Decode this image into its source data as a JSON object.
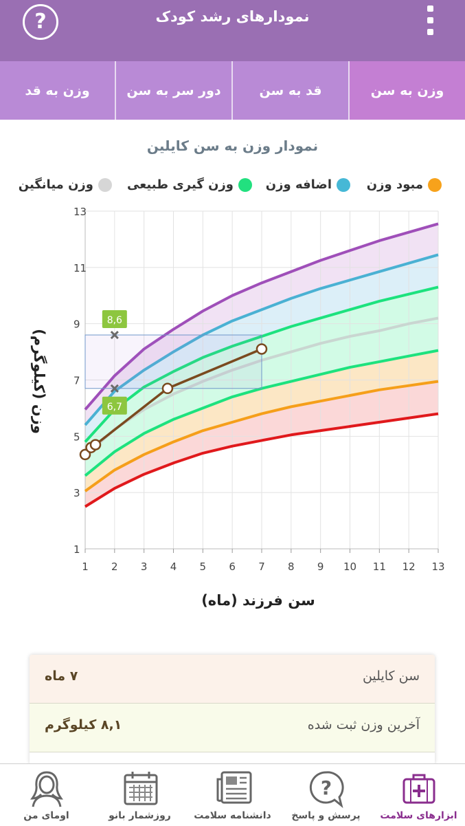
{
  "header": {
    "title": "نمودارهای رشد کودک",
    "help_icon": "help-icon",
    "menu_icon": "more-vert-icon",
    "help_glyph": "?"
  },
  "tabs": [
    {
      "label": "وزن به سن",
      "active": true
    },
    {
      "label": "قد به سن",
      "active": false
    },
    {
      "label": "دور سر به سن",
      "active": false
    },
    {
      "label": "وزن به قد",
      "active": false
    }
  ],
  "chart_title": "نمودار وزن به سن کایلین",
  "legend": [
    {
      "label": "مبود وزن",
      "color": "#f7a21b"
    },
    {
      "label": "اضافه وزن",
      "color": "#46b8d6"
    },
    {
      "label": "وزن گیری طبیعی",
      "color": "#22e07f"
    },
    {
      "label": "وزن میانگین",
      "color": "#d6d6d6"
    }
  ],
  "chart_data": {
    "type": "line",
    "x": [
      1,
      2,
      3,
      4,
      5,
      6,
      7,
      8,
      9,
      10,
      11,
      12,
      13
    ],
    "xlim": [
      1,
      13
    ],
    "ylim": [
      1,
      13
    ],
    "yticks": [
      1,
      3,
      5,
      7,
      9,
      11,
      13
    ],
    "xlabel": "سن فرزند (ماه)",
    "ylabel": "وزن (کیلوگرم)",
    "bands": [
      {
        "color": "#fbd8d8",
        "from": 0,
        "to": 1
      },
      {
        "color": "#fce7c5",
        "from": 1,
        "to": 2
      },
      {
        "color": "#d2fbe6",
        "from": 2,
        "to": 4
      },
      {
        "color": "#dceff8",
        "from": 4,
        "to": 5
      },
      {
        "color": "#f1e2f4",
        "from": 5,
        "to": 6
      }
    ],
    "series": [
      {
        "color": "#e0191c",
        "values": [
          2.5,
          3.15,
          3.65,
          4.05,
          4.4,
          4.65,
          4.85,
          5.05,
          5.2,
          5.35,
          5.5,
          5.65,
          5.8
        ]
      },
      {
        "color": "#f59f1a",
        "values": [
          3.05,
          3.8,
          4.35,
          4.8,
          5.2,
          5.5,
          5.8,
          6.05,
          6.25,
          6.45,
          6.65,
          6.8,
          6.95
        ]
      },
      {
        "color": "#1de27e",
        "values": [
          3.6,
          4.45,
          5.1,
          5.6,
          6.0,
          6.4,
          6.7,
          6.95,
          7.2,
          7.45,
          7.65,
          7.85,
          8.05
        ]
      },
      {
        "color": "#c9d6d1",
        "values": [
          4.3,
          5.25,
          5.95,
          6.5,
          6.95,
          7.35,
          7.7,
          8.0,
          8.3,
          8.55,
          8.75,
          9.0,
          9.2
        ]
      },
      {
        "color": "#1de27e",
        "values": [
          4.8,
          5.95,
          6.75,
          7.3,
          7.8,
          8.2,
          8.55,
          8.9,
          9.2,
          9.5,
          9.8,
          10.05,
          10.3
        ]
      },
      {
        "color": "#4ab1d3",
        "values": [
          5.4,
          6.6,
          7.35,
          8.0,
          8.6,
          9.1,
          9.5,
          9.9,
          10.25,
          10.55,
          10.85,
          11.15,
          11.45
        ]
      },
      {
        "color": "#9f4fb9",
        "values": [
          5.95,
          7.15,
          8.1,
          8.8,
          9.45,
          10.0,
          10.45,
          10.85,
          11.25,
          11.6,
          11.95,
          12.25,
          12.55
        ]
      }
    ],
    "child": {
      "color": "#7a4a1f",
      "points": [
        [
          1.0,
          4.35
        ],
        [
          1.2,
          4.6
        ],
        [
          1.35,
          4.7
        ],
        [
          3.8,
          6.7
        ],
        [
          7.0,
          8.1
        ]
      ]
    },
    "highlight": {
      "x_range": [
        1,
        7
      ],
      "y_range": [
        6.7,
        8.6
      ],
      "markers": [
        {
          "x": 2,
          "y": 8.6,
          "label": "8,6"
        },
        {
          "x": 2,
          "y": 6.7,
          "label": "6,7"
        }
      ]
    }
  },
  "info": [
    {
      "key": "سن کایلین",
      "value": "۷ ماه",
      "bg": "#fcf2ea"
    },
    {
      "key": "آخرین وزن ثبت شده",
      "value": "۸,۱ کیلوگرم",
      "bg": "#f9fbea"
    }
  ],
  "bottom_nav": [
    {
      "label": "ابزارهای سلامت",
      "icon": "medical-kit-icon",
      "active": true
    },
    {
      "label": "پرسش و پاسخ",
      "icon": "question-bubble-icon",
      "active": false
    },
    {
      "label": "دانشنامه سلامت",
      "icon": "newspaper-icon",
      "active": false
    },
    {
      "label": "روزشمار بانو",
      "icon": "calendar-icon",
      "active": false
    },
    {
      "label": "اومای من",
      "icon": "profile-woman-icon",
      "active": false
    }
  ]
}
